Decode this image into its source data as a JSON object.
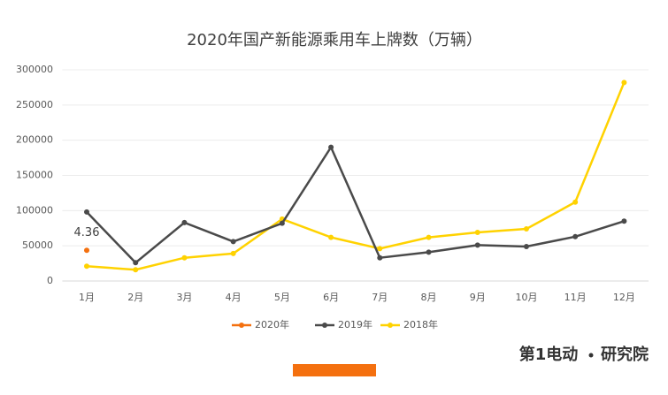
{
  "chart_data": {
    "type": "line",
    "title": "2020年国产新能源乘用车上牌数（万辆）",
    "categories": [
      "1月",
      "2月",
      "3月",
      "4月",
      "5月",
      "6月",
      "7月",
      "8月",
      "9月",
      "10月",
      "11月",
      "12月"
    ],
    "series": [
      {
        "name": "2020年",
        "color": "#f4700f",
        "values": [
          43600,
          null,
          null,
          null,
          null,
          null,
          null,
          null,
          null,
          null,
          null,
          null
        ],
        "value_labels": [
          "4.36",
          null,
          null,
          null,
          null,
          null,
          null,
          null,
          null,
          null,
          null,
          null
        ]
      },
      {
        "name": "2019年",
        "color": "#4a4a4a",
        "values": [
          98000,
          26000,
          83000,
          56000,
          82000,
          190000,
          33000,
          41000,
          51000,
          49000,
          63000,
          85000
        ]
      },
      {
        "name": "2018年",
        "color": "#ffd200",
        "values": [
          21000,
          16000,
          33000,
          39000,
          88000,
          62000,
          46000,
          62000,
          69000,
          74000,
          112000,
          282000
        ]
      }
    ],
    "ylim": [
      0,
      300000
    ],
    "yticks": [
      0,
      50000,
      100000,
      150000,
      200000,
      250000,
      300000
    ],
    "grid": true,
    "brand": [
      "第1电动",
      "研究院"
    ]
  }
}
